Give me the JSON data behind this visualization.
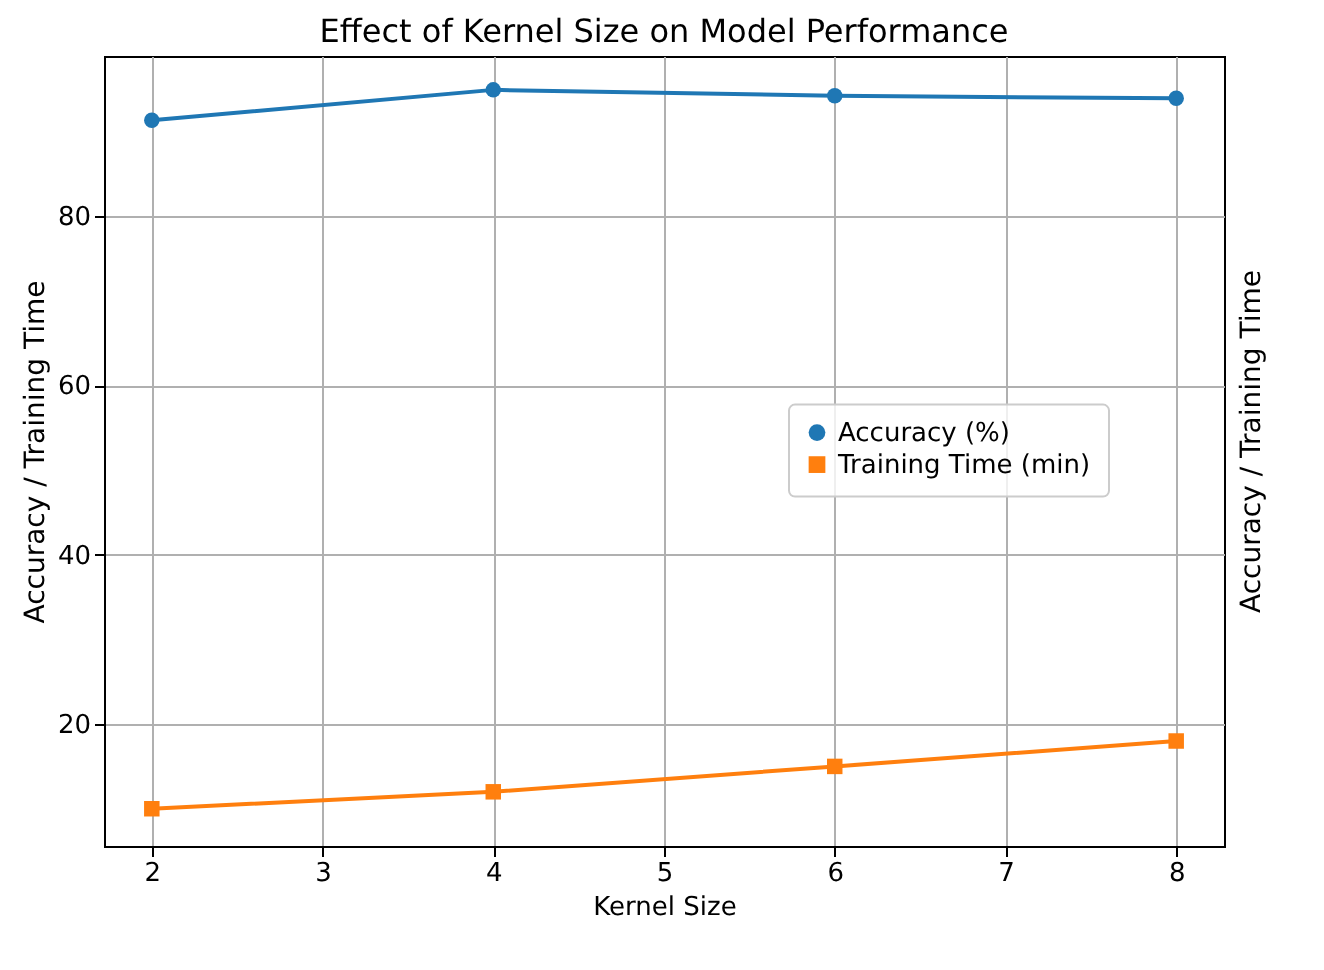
{
  "chart_data": {
    "type": "line",
    "title": "Effect of Kernel Size on Model Performance",
    "xlabel": "Kernel Size",
    "ylabel": "Accuracy / Training Time",
    "y2label": "Accuracy / Training Time",
    "x": [
      2,
      4,
      6,
      8
    ],
    "series": [
      {
        "name": "Accuracy (%)",
        "color": "#1f77b4",
        "marker": "circle",
        "values": [
          91.3,
          94.9,
          94.2,
          93.9
        ]
      },
      {
        "name": "Training Time (min)",
        "color": "#ff7f0e",
        "marker": "square",
        "values": [
          10,
          12,
          15,
          18
        ]
      }
    ],
    "xlim": [
      1.72,
      8.28
    ],
    "ylim": [
      5.6,
      98.9
    ],
    "xticks": [
      2,
      3,
      4,
      5,
      6,
      7,
      8
    ],
    "yticks": [
      20,
      40,
      60,
      80
    ],
    "grid": true,
    "legend": "right",
    "line_style": "solid"
  }
}
